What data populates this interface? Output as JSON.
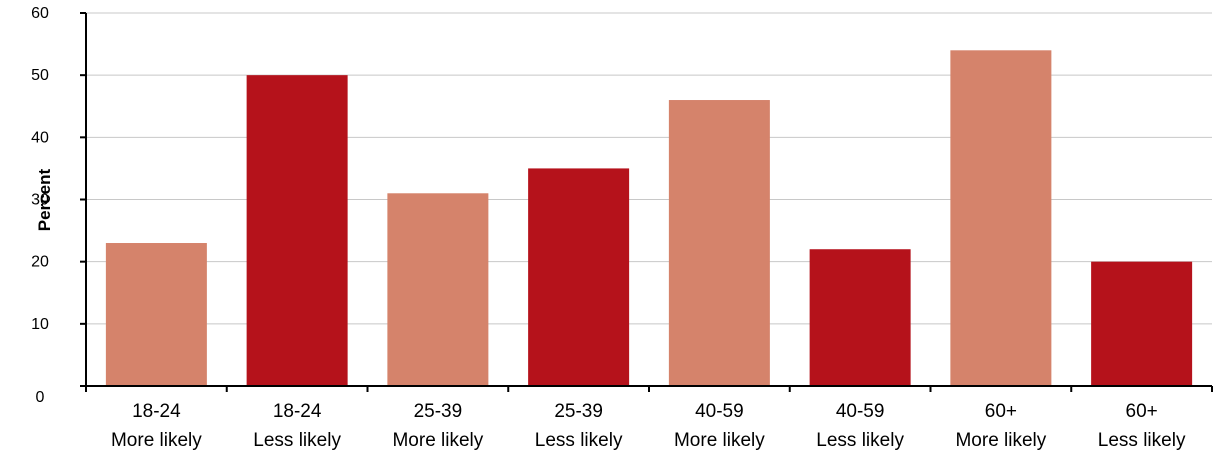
{
  "chart_data": {
    "type": "bar",
    "title": "",
    "xlabel": "",
    "ylabel": "Percent",
    "ylim": [
      0,
      60
    ],
    "yticks": [
      "0",
      "10",
      "20",
      "30",
      "40",
      "50",
      "60"
    ],
    "grid": true,
    "categories": [
      [
        "18-24",
        "More likely"
      ],
      [
        "18-24",
        "Less likely"
      ],
      [
        "25-39",
        "More likely"
      ],
      [
        "25-39",
        "Less likely"
      ],
      [
        "40-59",
        "More likely"
      ],
      [
        "40-59",
        "Less likely"
      ],
      [
        "60+",
        "More likely"
      ],
      [
        "60+",
        "Less likely"
      ]
    ],
    "values": [
      23,
      50,
      31,
      35,
      46,
      22,
      54,
      20
    ],
    "colors": {
      "more_likely": "#d5836b",
      "less_likely": "#b5121b",
      "grid": "#c8c8c8",
      "axis": "#000000"
    },
    "bar_colors": [
      "more_likely",
      "less_likely",
      "more_likely",
      "less_likely",
      "more_likely",
      "less_likely",
      "more_likely",
      "less_likely"
    ]
  }
}
